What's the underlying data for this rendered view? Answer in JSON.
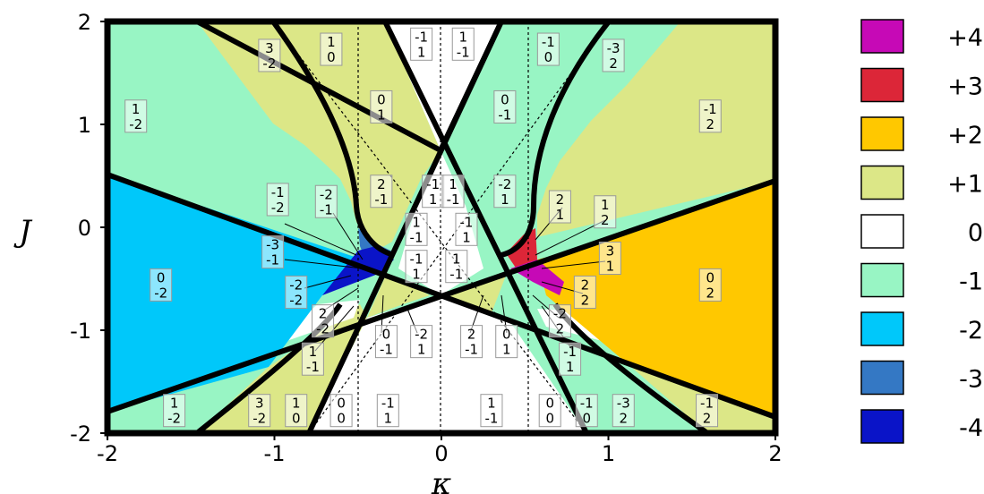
{
  "chart_data": {
    "type": "heatmap",
    "xlabel": "κ",
    "ylabel": "J",
    "xlim": [
      -2,
      2
    ],
    "ylim": [
      -2,
      2
    ],
    "xticks": [
      "-2",
      "-1",
      "0",
      "1",
      "2"
    ],
    "yticks": [
      "2",
      "1",
      "0",
      "-1",
      "-2"
    ],
    "legend": {
      "placement": "right",
      "entries": [
        {
          "label": "+4",
          "color": "#c609b6"
        },
        {
          "label": "+3",
          "color": "#dc2638"
        },
        {
          "label": "+2",
          "color": "#ffc800"
        },
        {
          "label": "+1",
          "color": "#dce787"
        },
        {
          "label": "0",
          "color": "#ffffff"
        },
        {
          "label": "-1",
          "color": "#98f5c4"
        },
        {
          "label": "-2",
          "color": "#00c8fa"
        },
        {
          "label": "-3",
          "color": "#3478c4"
        },
        {
          "label": "-4",
          "color": "#0a14c8"
        }
      ]
    },
    "phase_labels": [
      {
        "x": -1.83,
        "y": 1.08,
        "top": "1",
        "bottom": "-2"
      },
      {
        "x": -1.03,
        "y": 1.67,
        "top": "3",
        "bottom": "-2"
      },
      {
        "x": -0.66,
        "y": 1.73,
        "top": "1",
        "bottom": "0"
      },
      {
        "x": -0.12,
        "y": 1.78,
        "top": "-1",
        "bottom": "1"
      },
      {
        "x": 0.13,
        "y": 1.78,
        "top": "1",
        "bottom": "-1"
      },
      {
        "x": 0.64,
        "y": 1.73,
        "top": "-1",
        "bottom": "0"
      },
      {
        "x": 1.03,
        "y": 1.67,
        "top": "-3",
        "bottom": "2"
      },
      {
        "x": 1.61,
        "y": 1.08,
        "top": "-1",
        "bottom": "2"
      },
      {
        "x": -0.36,
        "y": 1.17,
        "top": "0",
        "bottom": "1"
      },
      {
        "x": 0.38,
        "y": 1.17,
        "top": "0",
        "bottom": "-1"
      },
      {
        "x": -0.98,
        "y": 0.27,
        "top": "-1",
        "bottom": "-2"
      },
      {
        "x": -0.69,
        "y": 0.25,
        "top": "-2",
        "bottom": "-1"
      },
      {
        "x": -0.36,
        "y": 0.35,
        "top": "2",
        "bottom": "-1"
      },
      {
        "x": -0.05,
        "y": 0.35,
        "top": "-1",
        "bottom": "1"
      },
      {
        "x": 0.07,
        "y": 0.35,
        "top": "1",
        "bottom": "-1"
      },
      {
        "x": 0.38,
        "y": 0.35,
        "top": "-2",
        "bottom": "1"
      },
      {
        "x": 0.71,
        "y": 0.2,
        "top": "2",
        "bottom": "1"
      },
      {
        "x": 0.98,
        "y": 0.15,
        "top": "1",
        "bottom": "2"
      },
      {
        "x": -0.15,
        "y": -0.02,
        "top": "1",
        "bottom": "-1"
      },
      {
        "x": 0.15,
        "y": -0.02,
        "top": "-1",
        "bottom": "1"
      },
      {
        "x": -1.01,
        "y": -0.24,
        "top": "-3",
        "bottom": "-1"
      },
      {
        "x": 1.01,
        "y": -0.3,
        "top": "3",
        "bottom": "1"
      },
      {
        "x": -0.15,
        "y": -0.38,
        "top": "-1",
        "bottom": "1"
      },
      {
        "x": 0.09,
        "y": -0.38,
        "top": "1",
        "bottom": "-1"
      },
      {
        "x": -1.68,
        "y": -0.56,
        "top": "0",
        "bottom": "-2"
      },
      {
        "x": -0.87,
        "y": -0.63,
        "top": "-2",
        "bottom": "-2"
      },
      {
        "x": 0.86,
        "y": -0.63,
        "top": "2",
        "bottom": "2"
      },
      {
        "x": 1.61,
        "y": -0.56,
        "top": "0",
        "bottom": "2"
      },
      {
        "x": -0.71,
        "y": -0.91,
        "top": "2",
        "bottom": "-2"
      },
      {
        "x": 0.71,
        "y": -0.91,
        "top": "-2",
        "bottom": "2"
      },
      {
        "x": -0.33,
        "y": -1.11,
        "top": "0",
        "bottom": "-1"
      },
      {
        "x": -0.12,
        "y": -1.11,
        "top": "-2",
        "bottom": "1"
      },
      {
        "x": 0.18,
        "y": -1.11,
        "top": "2",
        "bottom": "-1"
      },
      {
        "x": 0.39,
        "y": -1.11,
        "top": "0",
        "bottom": "1"
      },
      {
        "x": -0.77,
        "y": -1.28,
        "top": "1",
        "bottom": "-1"
      },
      {
        "x": 0.77,
        "y": -1.28,
        "top": "-1",
        "bottom": "1"
      },
      {
        "x": -1.6,
        "y": -1.78,
        "top": "1",
        "bottom": "-2"
      },
      {
        "x": -1.09,
        "y": -1.78,
        "top": "3",
        "bottom": "-2"
      },
      {
        "x": -0.87,
        "y": -1.78,
        "top": "1",
        "bottom": "0"
      },
      {
        "x": -0.6,
        "y": -1.78,
        "top": "0",
        "bottom": "0"
      },
      {
        "x": -0.32,
        "y": -1.78,
        "top": "-1",
        "bottom": "1"
      },
      {
        "x": 0.3,
        "y": -1.78,
        "top": "1",
        "bottom": "-1"
      },
      {
        "x": 0.65,
        "y": -1.78,
        "top": "0",
        "bottom": "0"
      },
      {
        "x": 0.87,
        "y": -1.78,
        "top": "-1",
        "bottom": "0"
      },
      {
        "x": 1.09,
        "y": -1.78,
        "top": "-3",
        "bottom": "2"
      },
      {
        "x": 1.59,
        "y": -1.78,
        "top": "-1",
        "bottom": "2"
      }
    ]
  }
}
